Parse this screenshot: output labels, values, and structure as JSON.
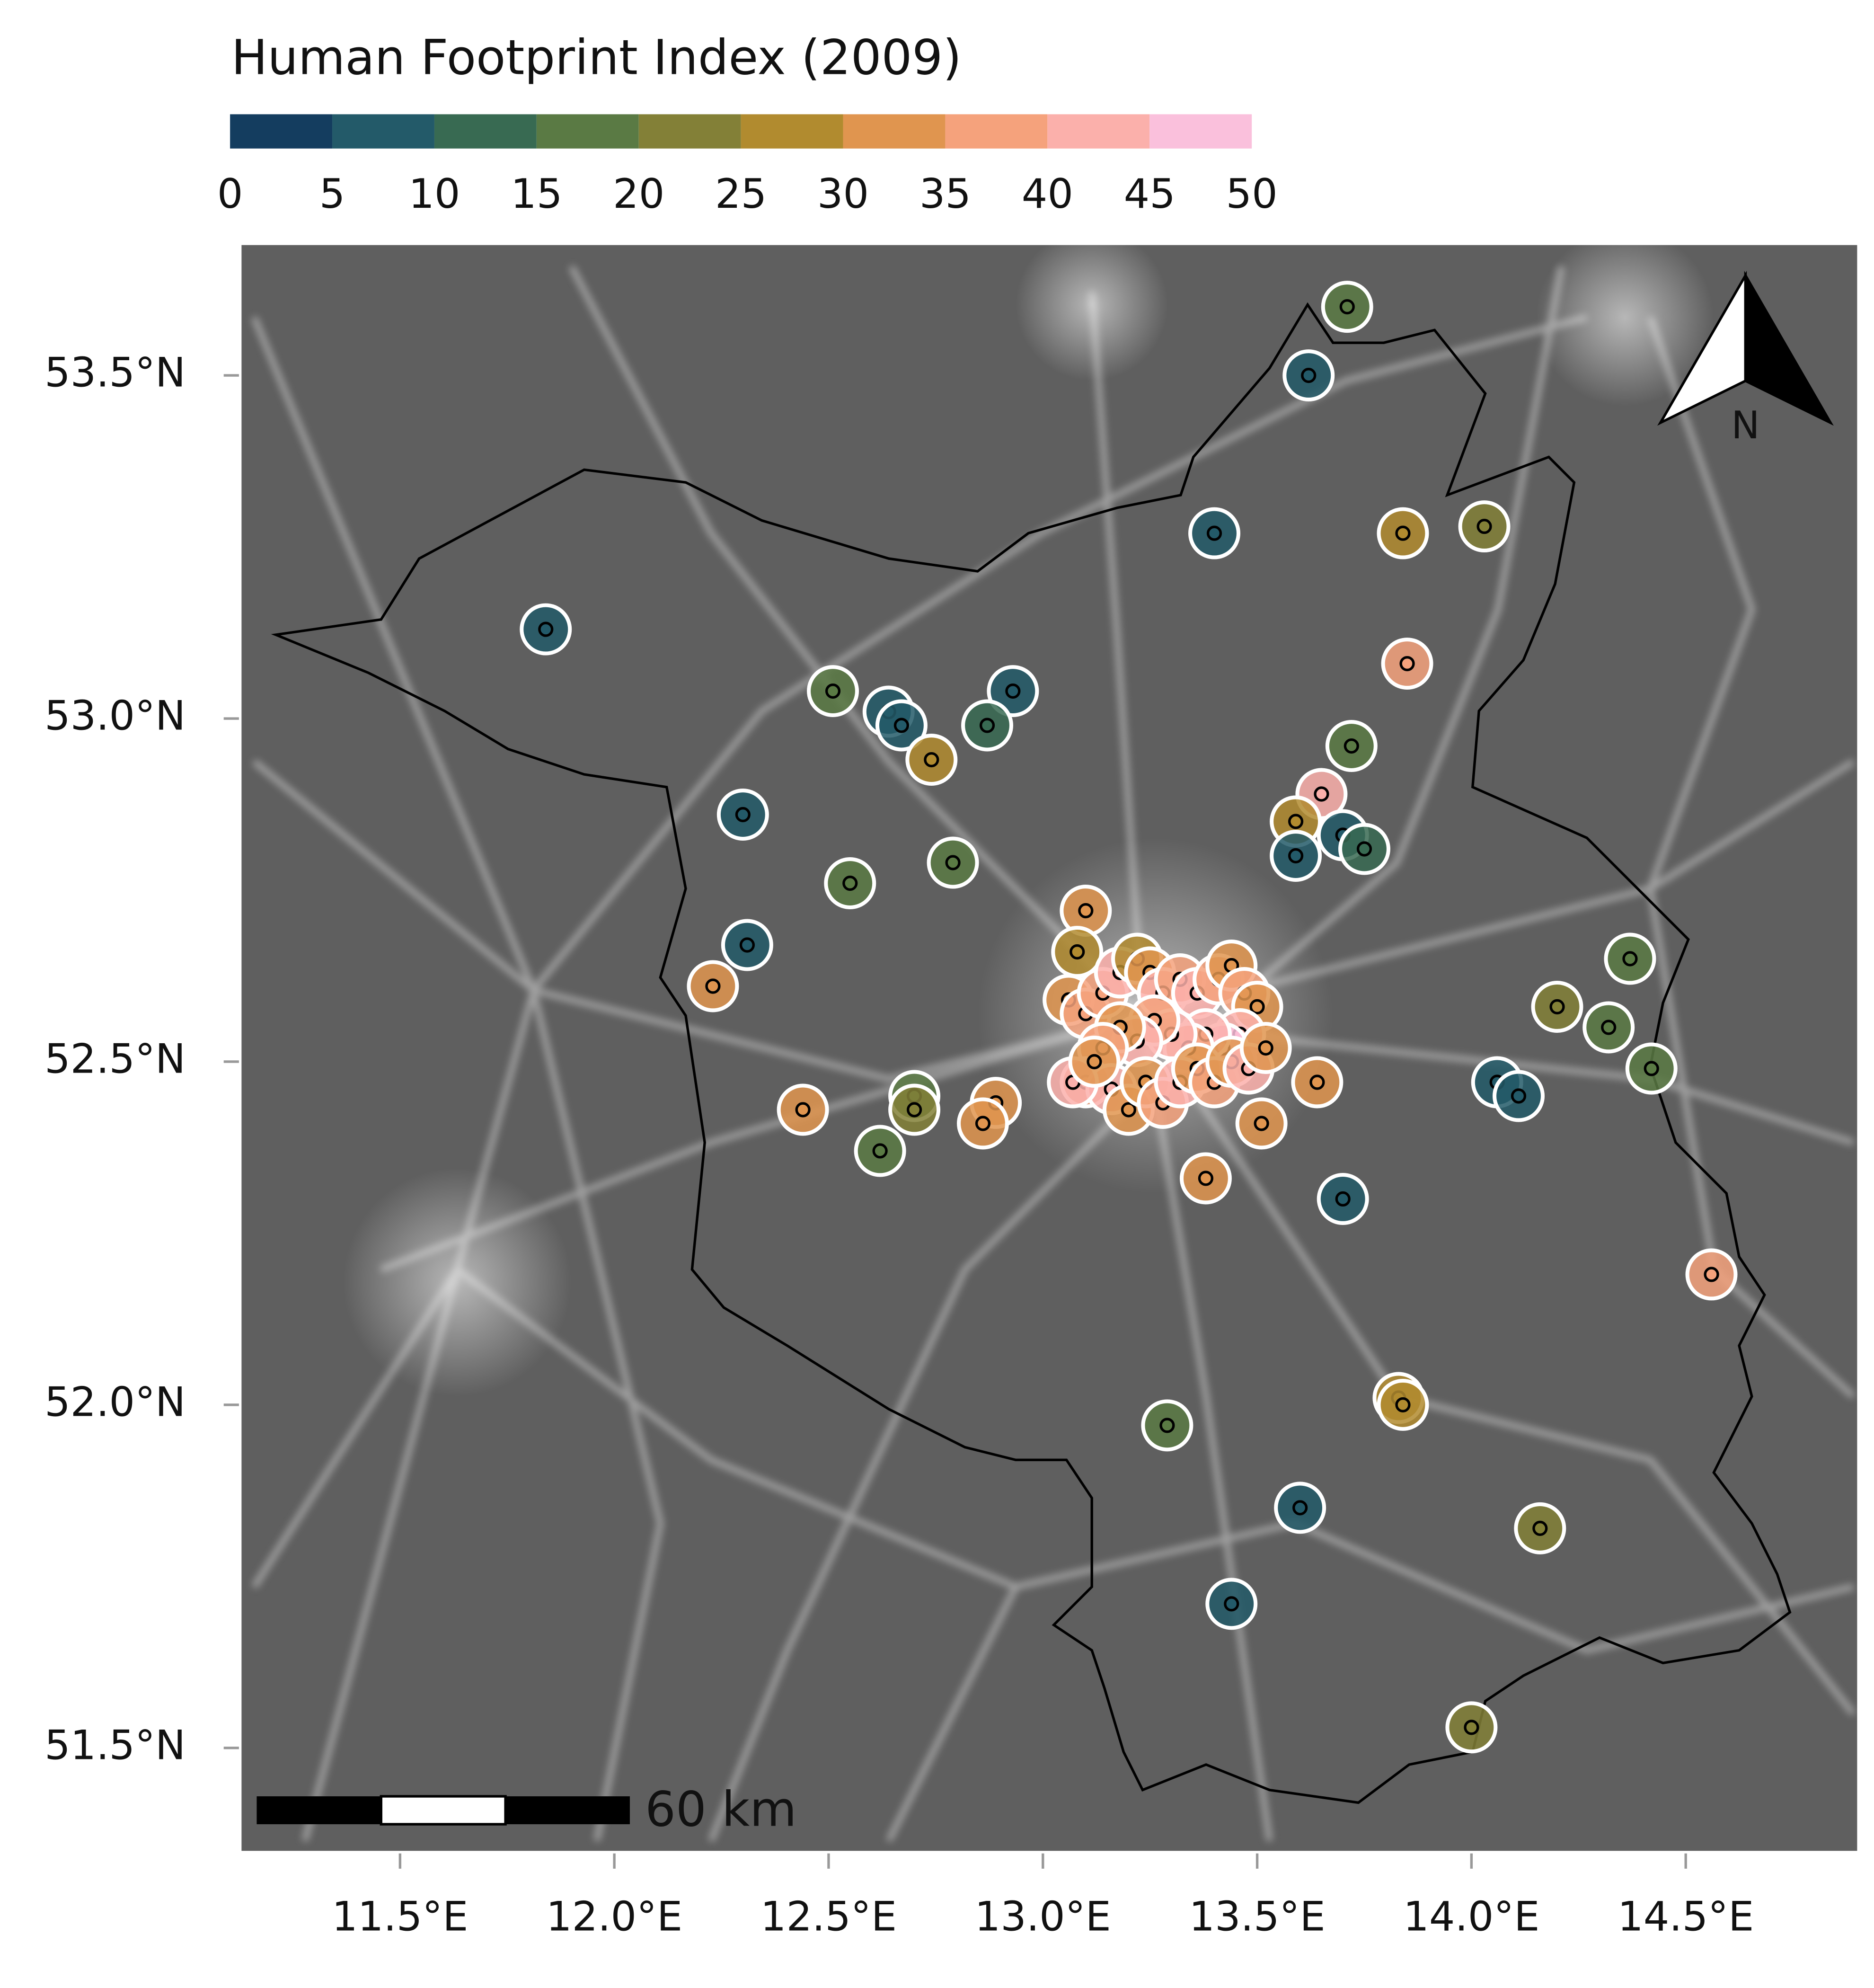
{
  "chart_data": {
    "type": "scatter",
    "title": "Human Footprint Index (2009)",
    "colorbar": {
      "ticks": [
        0,
        5,
        10,
        15,
        20,
        25,
        30,
        35,
        40,
        45,
        50
      ],
      "colors": [
        "#143d5f",
        "#235a69",
        "#386a52",
        "#5a7a44",
        "#838037",
        "#b18b2f",
        "#e0954f",
        "#f5a27c",
        "#fbb0ab",
        "#fac0dc"
      ]
    },
    "x": [
      13.71,
      13.62,
      13.4,
      13.84,
      14.03,
      11.84,
      13.85,
      12.51,
      12.64,
      12.67,
      12.93,
      12.87,
      12.74,
      13.72,
      12.3,
      13.65,
      13.59,
      13.7,
      13.75,
      13.59,
      12.55,
      12.79,
      13.1,
      12.31,
      12.23,
      14.37,
      14.2,
      14.32,
      14.42,
      14.06,
      14.11,
      13.64,
      12.44,
      12.7,
      12.7,
      12.62,
      12.89,
      12.86,
      13.51,
      13.38,
      13.7,
      14.56,
      13.83,
      13.84,
      13.29,
      13.6,
      14.16,
      13.44,
      14.0,
      13.08,
      13.06,
      13.1,
      13.14,
      13.18,
      13.22,
      13.25,
      13.28,
      13.32,
      13.36,
      13.41,
      13.44,
      13.47,
      13.5,
      13.46,
      13.42,
      13.38,
      13.34,
      13.3,
      13.26,
      13.22,
      13.18,
      13.14,
      13.1,
      13.16,
      13.2,
      13.24,
      13.28,
      13.32,
      13.36,
      13.4,
      13.44,
      13.48,
      13.52,
      13.07,
      13.12
    ],
    "y": [
      53.6,
      53.5,
      53.27,
      53.27,
      53.28,
      53.13,
      53.08,
      53.04,
      53.01,
      52.99,
      53.04,
      52.99,
      52.94,
      52.96,
      52.86,
      52.89,
      52.85,
      52.83,
      52.81,
      52.8,
      52.76,
      52.79,
      52.72,
      52.67,
      52.61,
      52.65,
      52.58,
      52.55,
      52.49,
      52.47,
      52.45,
      52.47,
      52.43,
      52.45,
      52.43,
      52.37,
      52.44,
      52.41,
      52.41,
      52.33,
      52.3,
      52.19,
      52.01,
      52.0,
      51.97,
      51.85,
      51.82,
      51.71,
      51.53,
      52.66,
      52.59,
      52.57,
      52.6,
      52.63,
      52.65,
      52.63,
      52.6,
      52.62,
      52.6,
      52.62,
      52.64,
      52.6,
      52.58,
      52.54,
      52.52,
      52.54,
      52.52,
      52.54,
      52.56,
      52.53,
      52.55,
      52.52,
      52.47,
      52.46,
      52.43,
      52.47,
      52.44,
      52.47,
      52.49,
      52.47,
      52.5,
      52.49,
      52.52,
      52.47,
      52.5
    ],
    "values": [
      17,
      8,
      9,
      27,
      22,
      7,
      36,
      16,
      6,
      9,
      7,
      12,
      27,
      17,
      7,
      42,
      27,
      9,
      12,
      8,
      16,
      17,
      30,
      8,
      32,
      18,
      22,
      18,
      19,
      8,
      6,
      31,
      34,
      19,
      22,
      18,
      32,
      32,
      33,
      32,
      9,
      36,
      26,
      28,
      15,
      6,
      21,
      8,
      21,
      28,
      30,
      35,
      38,
      42,
      28,
      33,
      40,
      36,
      44,
      38,
      30,
      36,
      33,
      40,
      45,
      42,
      37,
      44,
      36,
      41,
      34,
      38,
      36,
      40,
      30,
      34,
      38,
      42,
      30,
      36,
      33,
      40,
      34,
      43,
      31
    ],
    "xlim": [
      11.13,
      14.9
    ],
    "ylim": [
      51.35,
      53.69
    ],
    "xticks": [
      {
        "value": 11.5,
        "label": "11.5°E"
      },
      {
        "value": 12.0,
        "label": "12.0°E"
      },
      {
        "value": 12.5,
        "label": "12.5°E"
      },
      {
        "value": 13.0,
        "label": "13.0°E"
      },
      {
        "value": 13.5,
        "label": "13.5°E"
      },
      {
        "value": 14.0,
        "label": "14.0°E"
      },
      {
        "value": 14.5,
        "label": "14.5°E"
      }
    ],
    "yticks": [
      {
        "value": 51.5,
        "label": "51.5°N"
      },
      {
        "value": 52.0,
        "label": "52.0°N"
      },
      {
        "value": 52.5,
        "label": "52.5°N"
      },
      {
        "value": 53.0,
        "label": "53.0°N"
      },
      {
        "value": 53.5,
        "label": "53.5°N"
      }
    ],
    "scale_bar_label": "60 km",
    "north_label": "N"
  }
}
